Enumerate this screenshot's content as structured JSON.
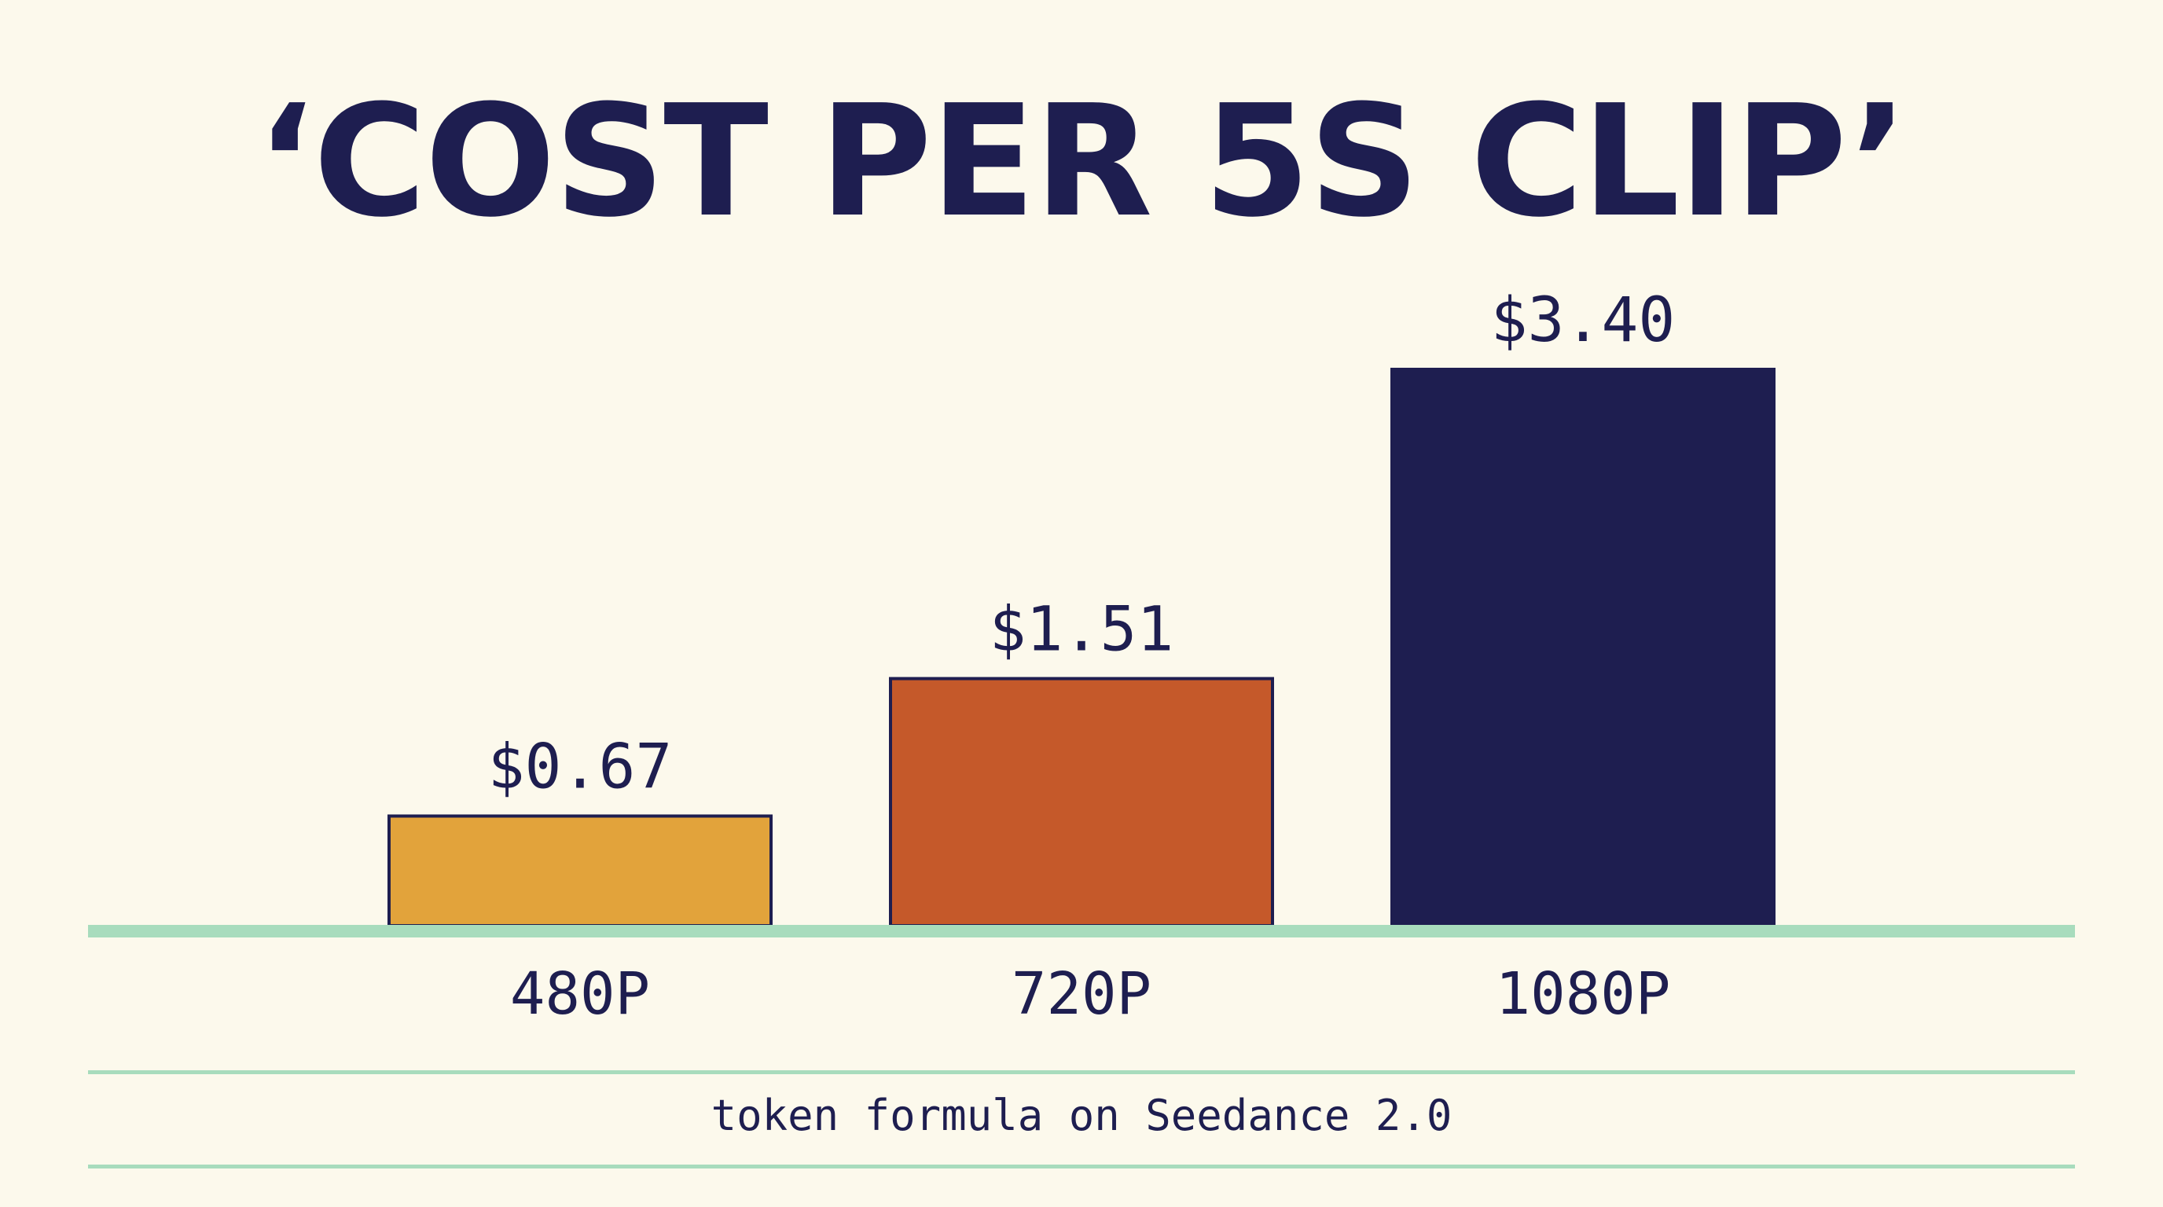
{
  "title": "‘COST PER 5S CLIP’",
  "footnote": "token formula on Seedance 2.0",
  "colors": {
    "background": "#fcf9ec",
    "ink": "#1e1e50",
    "baseline": "#a8dcbd",
    "bars": [
      "#e2a33b",
      "#c5592a",
      "#1e1e50"
    ]
  },
  "chart_data": {
    "type": "bar",
    "title": "‘COST PER 5S CLIP’",
    "categories": [
      "480P",
      "720P",
      "1080P"
    ],
    "values": [
      0.67,
      1.51,
      3.4
    ],
    "value_labels": [
      "$0.67",
      "$1.51",
      "$3.40"
    ],
    "xlabel": "",
    "ylabel": "",
    "ylim": [
      0,
      3.4
    ],
    "grid": false,
    "legend": "none"
  }
}
